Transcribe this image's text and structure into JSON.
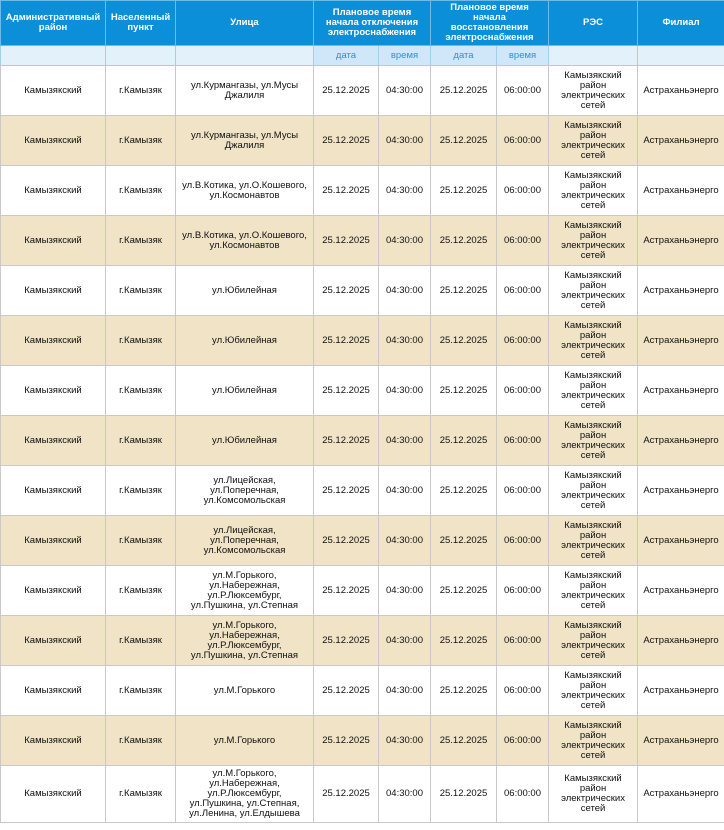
{
  "table": {
    "headers": [
      "Административный район",
      "Населенный пункт",
      "Улица",
      "Плановое время начала отключения электроснабжения",
      "Плановое время начала восстановления электроснабжения",
      "РЭС",
      "Филиал"
    ],
    "subheaders": [
      "дата",
      "время",
      "дата",
      "время"
    ],
    "rows": [
      [
        "Камызякский",
        "г.Камызяк",
        "ул.Курмангазы, ул.Мусы Джалиля",
        "25.12.2025",
        "04:30:00",
        "25.12.2025",
        "06:00:00",
        "Камызякский район электрических сетей",
        "Астраханьэнерго"
      ],
      [
        "Камызякский",
        "г.Камызяк",
        "ул.Курмангазы, ул.Мусы Джалиля",
        "25.12.2025",
        "04:30:00",
        "25.12.2025",
        "06:00:00",
        "Камызякский район электрических сетей",
        "Астраханьэнерго"
      ],
      [
        "Камызякский",
        "г.Камызяк",
        "ул.В.Котика, ул.О.Кошевого, ул.Космонавтов",
        "25.12.2025",
        "04:30:00",
        "25.12.2025",
        "06:00:00",
        "Камызякский район электрических сетей",
        "Астраханьэнерго"
      ],
      [
        "Камызякский",
        "г.Камызяк",
        "ул.В.Котика, ул.О.Кошевого, ул.Космонавтов",
        "25.12.2025",
        "04:30:00",
        "25.12.2025",
        "06:00:00",
        "Камызякский район электрических сетей",
        "Астраханьэнерго"
      ],
      [
        "Камызякский",
        "г.Камызяк",
        "ул.Юбилейная",
        "25.12.2025",
        "04:30:00",
        "25.12.2025",
        "06:00:00",
        "Камызякский район электрических сетей",
        "Астраханьэнерго"
      ],
      [
        "Камызякский",
        "г.Камызяк",
        "ул.Юбилейная",
        "25.12.2025",
        "04:30:00",
        "25.12.2025",
        "06:00:00",
        "Камызякский район электрических сетей",
        "Астраханьэнерго"
      ],
      [
        "Камызякский",
        "г.Камызяк",
        "ул.Юбилейная",
        "25.12.2025",
        "04:30:00",
        "25.12.2025",
        "06:00:00",
        "Камызякский район электрических сетей",
        "Астраханьэнерго"
      ],
      [
        "Камызякский",
        "г.Камызяк",
        "ул.Юбилейная",
        "25.12.2025",
        "04:30:00",
        "25.12.2025",
        "06:00:00",
        "Камызякский район электрических сетей",
        "Астраханьэнерго"
      ],
      [
        "Камызякский",
        "г.Камызяк",
        "ул.Лицейская, ул.Поперечная, ул.Комсомольская",
        "25.12.2025",
        "04:30:00",
        "25.12.2025",
        "06:00:00",
        "Камызякский район электрических сетей",
        "Астраханьэнерго"
      ],
      [
        "Камызякский",
        "г.Камызяк",
        "ул.Лицейская, ул.Поперечная, ул.Комсомольская",
        "25.12.2025",
        "04:30:00",
        "25.12.2025",
        "06:00:00",
        "Камызякский район электрических сетей",
        "Астраханьэнерго"
      ],
      [
        "Камызякский",
        "г.Камызяк",
        "ул.М.Горького, ул.Набережная, ул.Р.Люксембург, ул.Пушкина, ул.Степная",
        "25.12.2025",
        "04:30:00",
        "25.12.2025",
        "06:00:00",
        "Камызякский район электрических сетей",
        "Астраханьэнерго"
      ],
      [
        "Камызякский",
        "г.Камызяк",
        "ул.М.Горького, ул.Набережная, ул.Р.Люксембург, ул.Пушкина, ул.Степная",
        "25.12.2025",
        "04:30:00",
        "25.12.2025",
        "06:00:00",
        "Камызякский район электрических сетей",
        "Астраханьэнерго"
      ],
      [
        "Камызякский",
        "г.Камызяк",
        "ул.М.Горького",
        "25.12.2025",
        "04:30:00",
        "25.12.2025",
        "06:00:00",
        "Камызякский район электрических сетей",
        "Астраханьэнерго"
      ],
      [
        "Камызякский",
        "г.Камызяк",
        "ул.М.Горького",
        "25.12.2025",
        "04:30:00",
        "25.12.2025",
        "06:00:00",
        "Камызякский район электрических сетей",
        "Астраханьэнерго"
      ],
      [
        "Камызякский",
        "г.Камызяк",
        "ул.М.Горького, ул.Набережная, ул.Р.Люксембург, ул.Пушкина, ул.Степная, ул.Ленина, ул.Елдышева",
        "25.12.2025",
        "04:30:00",
        "25.12.2025",
        "06:00:00",
        "Камызякский район электрических сетей",
        "Астраханьэнерго"
      ]
    ]
  }
}
